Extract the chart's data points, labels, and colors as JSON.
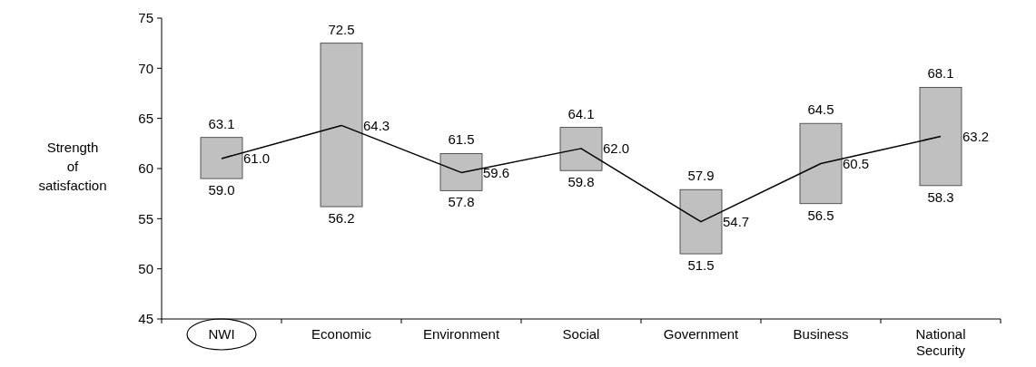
{
  "chart_data": {
    "type": "bar",
    "ylabel": "Strength of satisfaction",
    "categories": [
      "NWI",
      "Economic",
      "Environment",
      "Social",
      "Government",
      "Business",
      "National Security"
    ],
    "ylim": [
      45,
      75
    ],
    "yticks": [
      45,
      50,
      55,
      60,
      65,
      70,
      75
    ],
    "grid": false,
    "series": [
      {
        "color": "#c0c0c0",
        "base": [
          59.0,
          56.2,
          57.8,
          59.8,
          51.5,
          56.5,
          58.3
        ],
        "values": [
          4.1,
          16.3,
          3.7,
          4.3,
          6.4,
          8.0,
          9.8
        ]
      },
      {
        "type": "line",
        "color": "#000000",
        "values": [
          61.0,
          64.3,
          59.6,
          62.0,
          54.7,
          60.5,
          63.2
        ],
        "value_labels": [
          "61.0",
          "64.3",
          "59.6",
          "62.0",
          "54.7",
          "60.5",
          "63.2"
        ],
        "marker": "none",
        "line_style": "solid"
      }
    ],
    "annotations": [
      {
        "text": "63.1",
        "x": "NWI",
        "y": 63.1
      },
      {
        "text": "59.0",
        "x": "NWI",
        "y": 59.0
      },
      {
        "text": "72.5",
        "x": "Economic",
        "y": 72.5
      },
      {
        "text": "56.2",
        "x": "Economic",
        "y": 56.2
      },
      {
        "text": "61.5",
        "x": "Environment",
        "y": 61.5
      },
      {
        "text": "57.8",
        "x": "Environment",
        "y": 57.8
      },
      {
        "text": "64.1",
        "x": "Social",
        "y": 64.1
      },
      {
        "text": "59.8",
        "x": "Social",
        "y": 59.8
      },
      {
        "text": "57.9",
        "x": "Government",
        "y": 57.9
      },
      {
        "text": "51.5",
        "x": "Government",
        "y": 51.5
      },
      {
        "text": "64.5",
        "x": "Business",
        "y": 64.5
      },
      {
        "text": "56.5",
        "x": "Business",
        "y": 56.5
      },
      {
        "text": "68.1",
        "x": "National Security",
        "y": 68.1
      },
      {
        "text": "58.3",
        "x": "National Security",
        "y": 58.3
      }
    ]
  }
}
